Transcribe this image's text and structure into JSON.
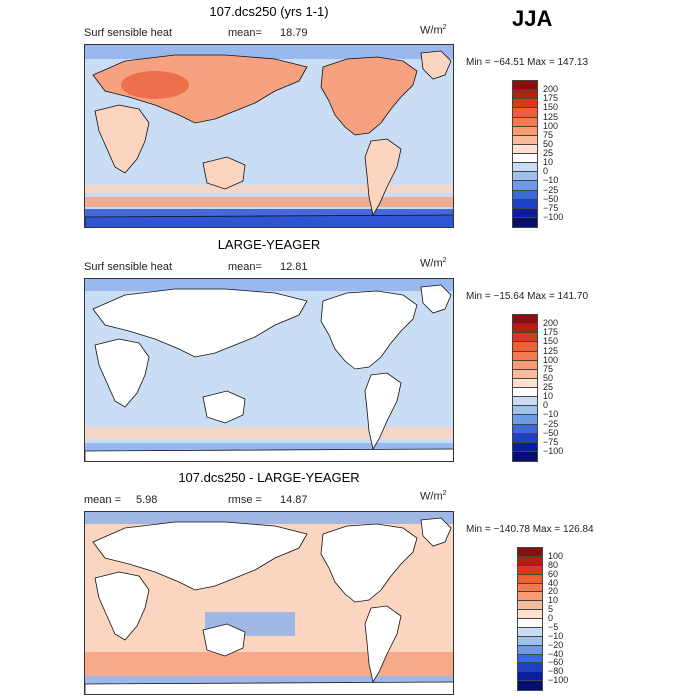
{
  "season": "JJA",
  "panels": [
    {
      "title": "107.dcs250 (yrs 1-1)",
      "left_label": "Surf sensible heat",
      "stat_label": "mean=",
      "stat_value": "18.79",
      "stat2_label": "",
      "stat2_value": "",
      "units_base": "W/m",
      "units_exp": "2",
      "minmax": "Min = −64.51 Max = 147.13",
      "colorbar": {
        "labels": [
          "200",
          "175",
          "150",
          "125",
          "100",
          "75",
          "50",
          "25",
          "10",
          "0",
          "−10",
          "−25",
          "−50",
          "−75",
          "−100"
        ],
        "colors": [
          "#8c0d0d",
          "#b22010",
          "#d9391b",
          "#ee5f33",
          "#f47a50",
          "#f99b75",
          "#fbbb9d",
          "#fde0cd",
          "#ffffff",
          "#c8dcf5",
          "#9ec1ee",
          "#6f9ae6",
          "#3d6ad9",
          "#1c3fca",
          "#0a1d9c",
          "#050f6e"
        ]
      }
    },
    {
      "title": "LARGE-YEAGER",
      "left_label": "Surf sensible heat",
      "stat_label": "mean=",
      "stat_value": "12.81",
      "stat2_label": "",
      "stat2_value": "",
      "units_base": "W/m",
      "units_exp": "2",
      "minmax": "Min = −15.64 Max = 141.70",
      "colorbar": {
        "labels": [
          "200",
          "175",
          "150",
          "125",
          "100",
          "75",
          "50",
          "25",
          "10",
          "0",
          "−10",
          "−25",
          "−50",
          "−75",
          "−100"
        ],
        "colors": [
          "#8c0d0d",
          "#b22010",
          "#d9391b",
          "#ee5f33",
          "#f47a50",
          "#f99b75",
          "#fbbb9d",
          "#fde0cd",
          "#ffffff",
          "#c8dcf5",
          "#9ec1ee",
          "#6f9ae6",
          "#3d6ad9",
          "#1c3fca",
          "#0a1d9c",
          "#050f6e"
        ]
      }
    },
    {
      "title": "107.dcs250 - LARGE-YEAGER",
      "left_label": "",
      "stat_label": "mean =",
      "stat_value": "5.98",
      "stat2_label": "rmse =",
      "stat2_value": "14.87",
      "units_base": "W/m",
      "units_exp": "2",
      "minmax": "Min = −140.78 Max = 126.84",
      "colorbar": {
        "labels": [
          "100",
          "80",
          "60",
          "40",
          "20",
          "10",
          "5",
          "0",
          "−5",
          "−10",
          "−20",
          "−40",
          "−60",
          "−80",
          "−100"
        ],
        "colors": [
          "#8c0d0d",
          "#b22010",
          "#d9391b",
          "#ee5f33",
          "#f47a50",
          "#f99b75",
          "#fbbb9d",
          "#fde0cd",
          "#ffffff",
          "#c8dcf5",
          "#9ec1ee",
          "#6f9ae6",
          "#3d6ad9",
          "#1c3fca",
          "#0a1d9c",
          "#050f6e"
        ]
      }
    }
  ],
  "fill_colors": {
    "ocean_positive": "#c9ddf4",
    "warm_light": "#fbd5c0",
    "warm_mid": "#f6a280",
    "warm_strong": "#e95a35",
    "cool_mid": "#8fb2ec",
    "cool_strong": "#2f55d2",
    "land_mask": "#ffffff"
  }
}
